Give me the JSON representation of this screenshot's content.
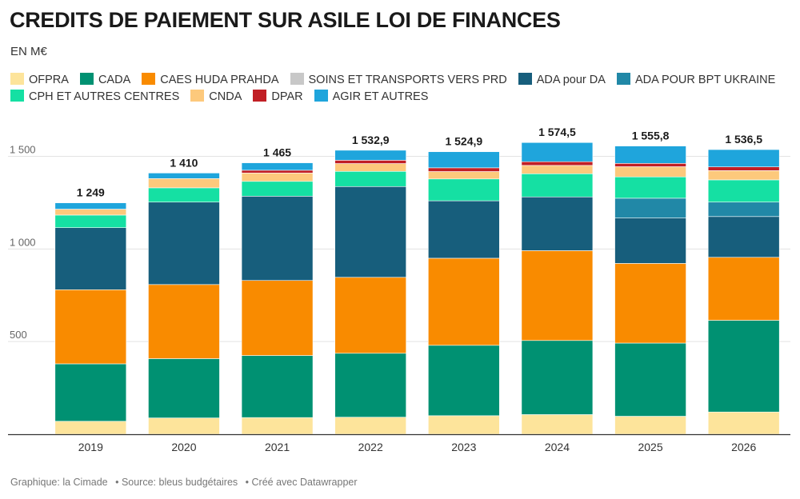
{
  "header": {
    "title": "CREDITS DE PAIEMENT SUR ASILE LOI DE FINANCES",
    "subtitle": "EN M€"
  },
  "colors": {
    "OFPRA": "#fde49b",
    "CADA": "#009172",
    "CAES HUDA PRAHDA": "#f98b00",
    "SOINS ET TRANSPORTS VERS PRD": "#c8c8c8",
    "ADA pour DA": "#175e7c",
    "ADA POUR BPT UKRAINE": "#2188a7",
    "CPH ET AUTRES CENTRES": "#15e0a3",
    "CNDA": "#fdc97c",
    "DPAR": "#c11f25",
    "AGIR ET AUTRES": "#1fa5dc"
  },
  "chart_data": {
    "type": "bar",
    "stacked": true,
    "title": "CREDITS DE PAIEMENT SUR ASILE LOI DE FINANCES",
    "subtitle": "EN M€",
    "categories": [
      "2019",
      "2020",
      "2021",
      "2022",
      "2023",
      "2024",
      "2025",
      "2026"
    ],
    "totals": [
      "1 249",
      "1 410",
      "1 465",
      "1 532,9",
      "1 524,9",
      "1 574,5",
      "1 555,8",
      "1 536,5"
    ],
    "total_values": [
      1249,
      1410,
      1465,
      1532.9,
      1524.9,
      1574.5,
      1555.8,
      1536.5
    ],
    "ylim": [
      0,
      1600
    ],
    "yticks": [
      500,
      1000,
      1500
    ],
    "ytick_labels": [
      "500",
      "1 000",
      "1 500"
    ],
    "grid": true,
    "series": [
      {
        "name": "OFPRA",
        "values": [
          70,
          88,
          90,
          92,
          100,
          106,
          97,
          120
        ]
      },
      {
        "name": "CADA",
        "values": [
          310,
          320,
          335,
          345,
          380,
          400,
          395,
          495
        ]
      },
      {
        "name": "CAES HUDA PRAHDA",
        "values": [
          400,
          400,
          405,
          410,
          470,
          485,
          430,
          340
        ]
      },
      {
        "name": "SOINS ET TRANSPORTS VERS PRD",
        "values": [
          0,
          0,
          0,
          0,
          0,
          0,
          0,
          0
        ]
      },
      {
        "name": "ADA pour DA",
        "values": [
          335,
          445,
          455,
          490,
          310,
          290,
          245,
          220
        ]
      },
      {
        "name": "ADA POUR BPT UKRAINE",
        "values": [
          0,
          0,
          0,
          0,
          0,
          0,
          107,
          78
        ]
      },
      {
        "name": "CPH ET AUTRES CENTRES",
        "values": [
          68,
          77,
          80,
          82,
          118,
          125,
          115,
          120
        ]
      },
      {
        "name": "CNDA",
        "values": [
          32,
          50,
          45,
          42,
          40,
          45,
          55,
          50
        ]
      },
      {
        "name": "DPAR",
        "values": [
          0,
          0,
          15,
          18,
          20,
          20,
          18,
          20
        ]
      },
      {
        "name": "AGIR ET AUTRES",
        "values": [
          34,
          30,
          40,
          53.9,
          86.9,
          103.5,
          93.8,
          93.5
        ]
      }
    ],
    "legend": [
      "OFPRA",
      "CADA",
      "CAES HUDA PRAHDA",
      "SOINS ET TRANSPORTS VERS PRD",
      "ADA pour DA",
      "ADA POUR BPT UKRAINE",
      "CPH ET AUTRES CENTRES",
      "CNDA",
      "DPAR",
      "AGIR ET AUTRES"
    ]
  },
  "footer": {
    "credit": "Graphique: la Cimade",
    "source": "• Source: bleus budgétaires",
    "tool": "• Créé avec Datawrapper"
  }
}
